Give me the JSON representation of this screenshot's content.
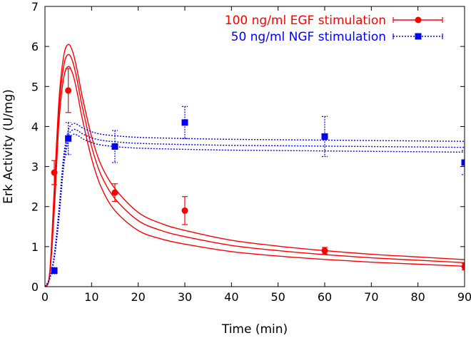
{
  "chart_data": {
    "type": "line",
    "title": "",
    "xlabel": "Time (min)",
    "ylabel": "Erk Activity (U/mg)",
    "xlim": [
      0,
      90
    ],
    "ylim": [
      0,
      7
    ],
    "xticks": [
      0,
      10,
      20,
      30,
      40,
      50,
      60,
      70,
      80,
      90
    ],
    "yticks": [
      0,
      1,
      2,
      3,
      4,
      5,
      6,
      7
    ],
    "grid": false,
    "legend_position": "top-right",
    "series": [
      {
        "name": "100 ng/ml EGF stimulation",
        "color": "#ff0000",
        "marker": "circle",
        "points": [
          {
            "x": 2,
            "y": 2.85,
            "err": 0.3
          },
          {
            "x": 5,
            "y": 4.9,
            "err": 0.55
          },
          {
            "x": 15,
            "y": 2.35,
            "err": 0.22
          },
          {
            "x": 30,
            "y": 1.9,
            "err": 0.35
          },
          {
            "x": 60,
            "y": 0.9,
            "err": 0.08
          },
          {
            "x": 90,
            "y": 0.5,
            "err": 0.08
          }
        ],
        "model": {
          "x": [
            0,
            1,
            2,
            3,
            4,
            5,
            6,
            7,
            8,
            10,
            12,
            15,
            20,
            25,
            30,
            40,
            50,
            60,
            70,
            80,
            90
          ],
          "y": [
            0,
            0.3,
            2.2,
            4.4,
            5.5,
            5.8,
            5.6,
            5.1,
            4.5,
            3.5,
            2.8,
            2.2,
            1.65,
            1.4,
            1.25,
            1.03,
            0.9,
            0.8,
            0.72,
            0.66,
            0.6
          ],
          "band_upper_offset": 0.25,
          "band_lower_offset": -0.3
        }
      },
      {
        "name": "50 ng/ml NGF stimulation",
        "color": "#0000ff",
        "marker": "square",
        "points": [
          {
            "x": 2,
            "y": 0.4,
            "err": 0.08
          },
          {
            "x": 5,
            "y": 3.7,
            "err": 0.4
          },
          {
            "x": 15,
            "y": 3.5,
            "err": 0.4
          },
          {
            "x": 30,
            "y": 4.1,
            "err": 0.4
          },
          {
            "x": 60,
            "y": 3.75,
            "err": 0.5
          },
          {
            "x": 90,
            "y": 3.1,
            "err": 0.3
          }
        ],
        "model": {
          "x": [
            0,
            1,
            2,
            3,
            4,
            5,
            6,
            7,
            8,
            10,
            12,
            15,
            20,
            30,
            40,
            50,
            60,
            70,
            80,
            90
          ],
          "y": [
            0,
            0.2,
            0.75,
            1.8,
            3.1,
            3.75,
            3.92,
            3.9,
            3.82,
            3.72,
            3.66,
            3.62,
            3.58,
            3.55,
            3.53,
            3.52,
            3.51,
            3.5,
            3.49,
            3.48
          ],
          "band_upper_offset": 0.15,
          "band_lower_offset": -0.12
        }
      }
    ]
  }
}
